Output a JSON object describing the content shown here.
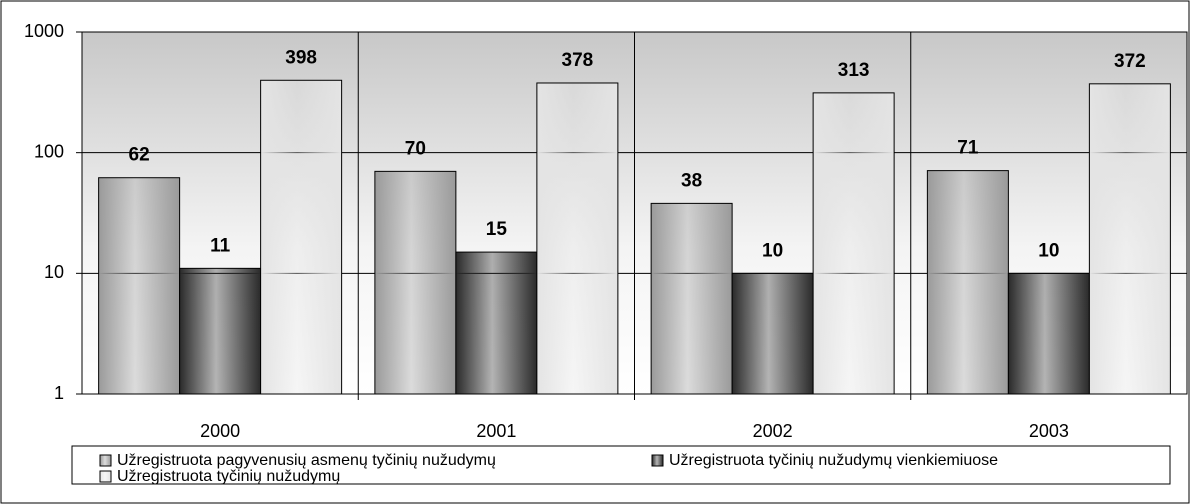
{
  "chart_data": {
    "type": "bar",
    "categories": [
      "2000",
      "2001",
      "2002",
      "2003"
    ],
    "series": [
      {
        "name": "Užregistruota pagyvenusių asmenų tyčinių nužudymų",
        "color": "#9a9a9a",
        "values": [
          62,
          70,
          38,
          71
        ]
      },
      {
        "name": "Užregistruota tyčinių nužudymų vienkiemiuose",
        "color": "#2a2a2a",
        "values": [
          11,
          15,
          10,
          10
        ]
      },
      {
        "name": "Užregistruota tyčinių nužudymų",
        "color": "#e4e4e4",
        "values": [
          398,
          378,
          313,
          372
        ]
      }
    ],
    "ylim": [
      1,
      1000
    ],
    "yticks": [
      1,
      10,
      100,
      1000
    ],
    "yscale": "log",
    "grid": true,
    "legend": "bottom"
  }
}
